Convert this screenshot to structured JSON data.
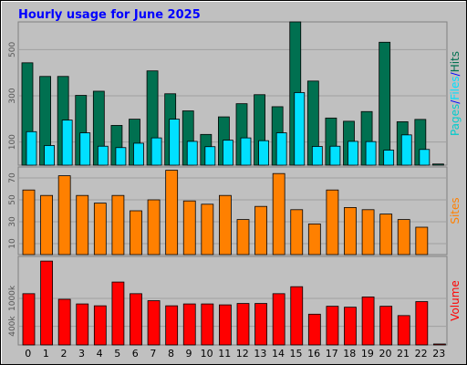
{
  "chart_data": [
    {
      "type": "bar",
      "title": "Hourly usage for June 2025",
      "categories": [
        "0",
        "1",
        "2",
        "3",
        "4",
        "5",
        "6",
        "7",
        "8",
        "9",
        "10",
        "11",
        "12",
        "13",
        "14",
        "15",
        "16",
        "17",
        "18",
        "19",
        "20",
        "21",
        "22",
        "23"
      ],
      "ylabel_parts": [
        "Pages",
        "/",
        "Files",
        "/",
        "Hits"
      ],
      "ylim": [
        0,
        620
      ],
      "yticks": [
        "100",
        "300",
        "500"
      ],
      "series": [
        {
          "name": "Hits",
          "color": "#007050",
          "values": [
            443,
            384,
            384,
            302,
            320,
            172,
            199,
            408,
            309,
            235,
            133,
            209,
            266,
            305,
            253,
            620,
            364,
            204,
            190,
            232,
            532,
            188,
            198,
            5
          ]
        },
        {
          "name": "Files",
          "color": "#00e0ff",
          "values": [
            145,
            85,
            195,
            140,
            82,
            76,
            95,
            118,
            199,
            103,
            80,
            108,
            118,
            106,
            140,
            314,
            81,
            82,
            103,
            102,
            65,
            131,
            68,
            0
          ]
        },
        {
          "name": "Pages",
          "color": "#00cccc",
          "values": [
            0,
            0,
            0,
            0,
            0,
            0,
            0,
            0,
            0,
            0,
            0,
            0,
            0,
            0,
            0,
            0,
            0,
            0,
            0,
            0,
            0,
            0,
            0,
            0
          ]
        }
      ]
    },
    {
      "type": "bar",
      "categories": [
        "0",
        "1",
        "2",
        "3",
        "4",
        "5",
        "6",
        "7",
        "8",
        "9",
        "10",
        "11",
        "12",
        "13",
        "14",
        "15",
        "16",
        "17",
        "18",
        "19",
        "20",
        "21",
        "22",
        "23"
      ],
      "ylabel": "Sites",
      "ylim": [
        0,
        80
      ],
      "yticks": [
        "10",
        "30",
        "50",
        "70"
      ],
      "series": [
        {
          "name": "Sites",
          "color": "#ff8000",
          "values": [
            59,
            54,
            72,
            54,
            47,
            54,
            40,
            50,
            77,
            49,
            46,
            54,
            32,
            44,
            74,
            41,
            28,
            59,
            43,
            41,
            37,
            32,
            25,
            0
          ]
        }
      ]
    },
    {
      "type": "bar",
      "categories": [
        "0",
        "1",
        "2",
        "3",
        "4",
        "5",
        "6",
        "7",
        "8",
        "9",
        "10",
        "11",
        "12",
        "13",
        "14",
        "15",
        "16",
        "17",
        "18",
        "19",
        "20",
        "21",
        "22",
        "23"
      ],
      "ylabel": "Volume",
      "ylim": [
        0,
        1900
      ],
      "yticks": [
        "400k",
        "1000k"
      ],
      "series": [
        {
          "name": "Volume",
          "color": "#ff0000",
          "values": [
            1100,
            1800,
            980,
            880,
            840,
            1350,
            1100,
            950,
            840,
            880,
            880,
            860,
            890,
            890,
            1100,
            1250,
            660,
            830,
            810,
            1030,
            830,
            630,
            930,
            20
          ]
        }
      ]
    }
  ]
}
